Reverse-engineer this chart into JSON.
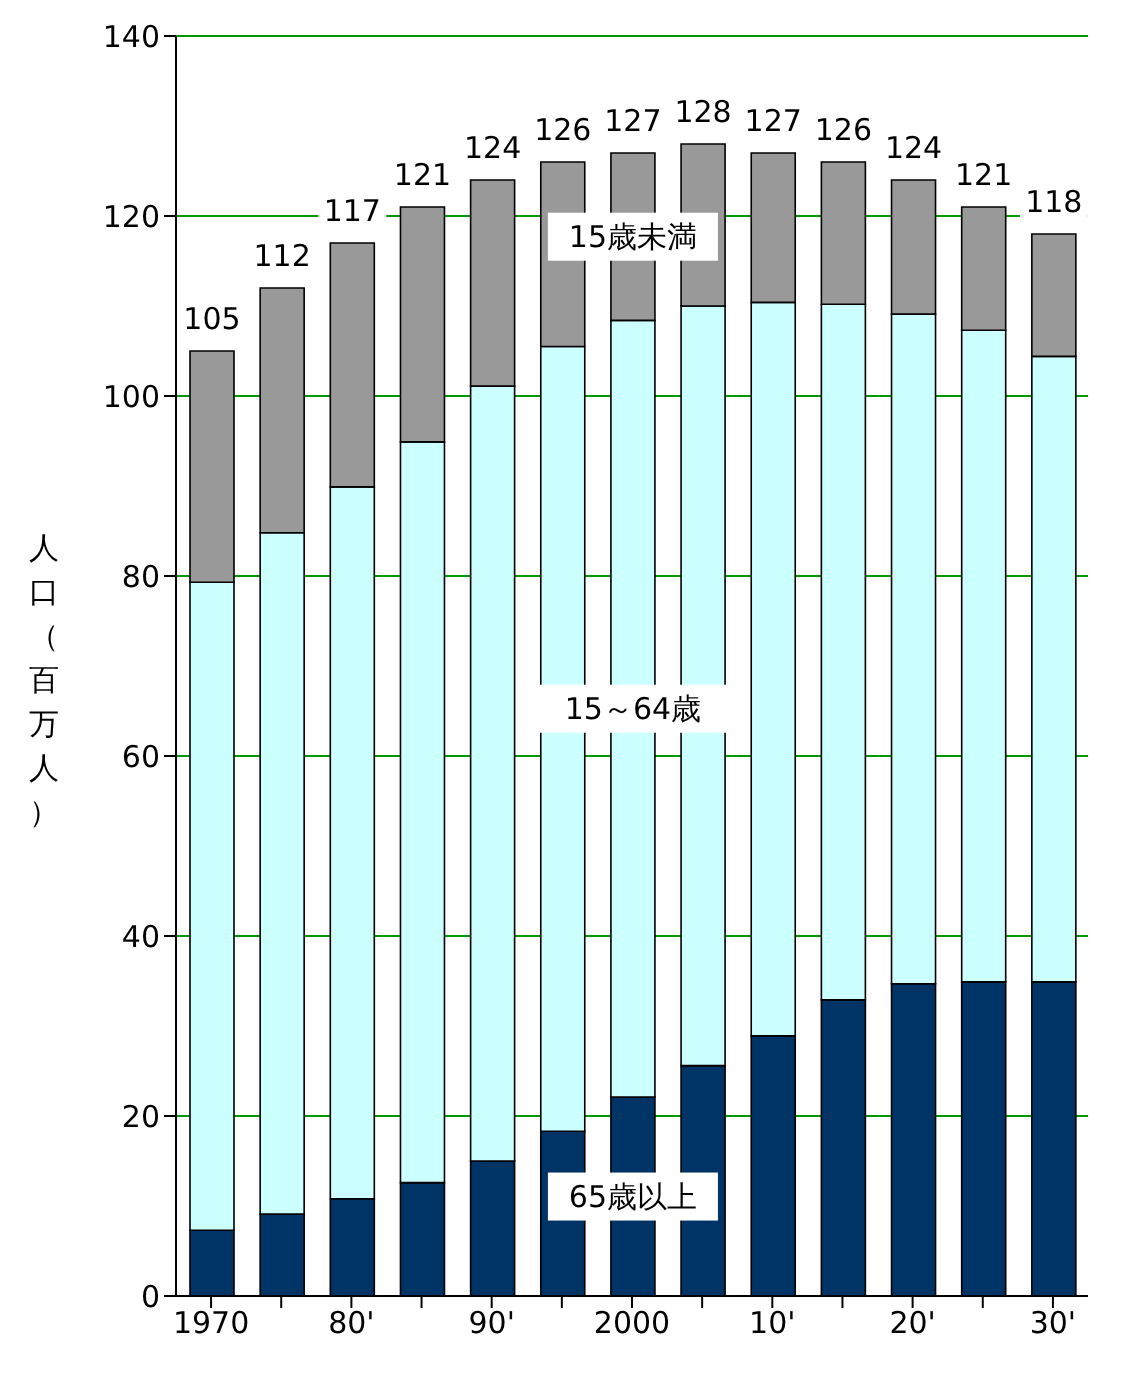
{
  "chart_data": {
    "type": "bar",
    "stacked": true,
    "ylabel": "人口（百万人）",
    "categories": [
      "1970",
      null,
      "80'",
      null,
      "90'",
      null,
      "2000",
      null,
      "10'",
      null,
      "20'",
      null,
      "30'"
    ],
    "series": [
      {
        "name": "65歳以上",
        "color": "#003366",
        "values": [
          7.3,
          9.1,
          10.8,
          12.6,
          15.0,
          18.3,
          22.1,
          25.6,
          28.9,
          32.9,
          34.7,
          34.9,
          34.9
        ]
      },
      {
        "name": "15～64歳",
        "color": "#ccffff",
        "values": [
          72.0,
          75.7,
          79.1,
          82.3,
          86.1,
          87.2,
          86.3,
          84.4,
          81.5,
          77.3,
          74.4,
          72.4,
          69.5
        ]
      },
      {
        "name": "15歳未満",
        "color": "#999999",
        "values": [
          25.7,
          27.2,
          27.1,
          26.1,
          22.9,
          20.5,
          18.6,
          18.0,
          16.6,
          15.8,
          14.9,
          13.7,
          13.6
        ]
      }
    ],
    "totals": [
      "105",
      "112",
      "117",
      "121",
      "124",
      "126",
      "127",
      "128",
      "127",
      "126",
      "124",
      "121",
      "118"
    ],
    "ylim": [
      0,
      140
    ],
    "yticks": [
      0,
      20,
      40,
      60,
      80,
      100,
      120,
      140
    ],
    "grid": "y"
  }
}
